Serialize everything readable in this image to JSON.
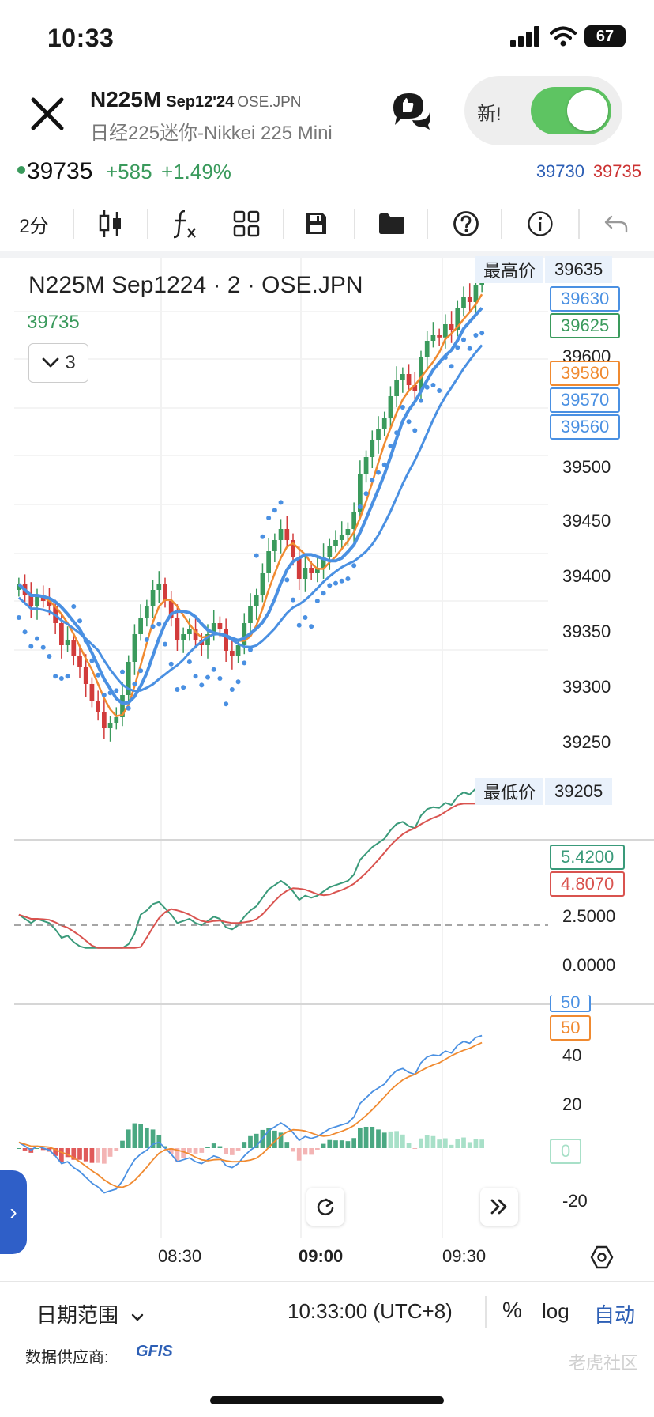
{
  "status_bar": {
    "time": "10:33",
    "battery": "67"
  },
  "header": {
    "symbol": "N225M",
    "contract": "Sep12'24",
    "exchange": "OSE.JPN",
    "subtitle": "日经225迷你-Nikkei 225 Mini",
    "new_label": "新!",
    "toggle_on": true
  },
  "quote": {
    "price": "39735",
    "change": "+585",
    "change_pct": "+1.49%",
    "bid": "39730",
    "ask": "39735"
  },
  "toolbar": {
    "interval": "2分",
    "icons": [
      "candlestick-icon",
      "function-icon",
      "grid-icon",
      "save-icon",
      "folder-icon",
      "help-icon",
      "info-icon",
      "undo-icon"
    ]
  },
  "chart": {
    "title": "N225M Sep1224 · 2 · OSE.JPN",
    "last": "39735",
    "collapse_count": "3",
    "high_label": "最高价",
    "high_value": "39635",
    "low_label": "最低价",
    "low_value": "39205",
    "badges": [
      {
        "value": "39630",
        "color": "#4a90e2"
      },
      {
        "value": "39625",
        "color": "#3a9a5c"
      },
      {
        "value": "39580",
        "color": "#f08a30"
      },
      {
        "value": "39570",
        "color": "#4a90e2"
      },
      {
        "value": "39560",
        "color": "#4a90e2"
      }
    ],
    "osc_badges": [
      {
        "value": "5.4200",
        "color": "#3a9a7a"
      },
      {
        "value": "4.8070",
        "color": "#d9534f"
      }
    ],
    "macd_badges": [
      {
        "value": "50",
        "color": "#4a90e2"
      },
      {
        "value": "50",
        "color": "#f08a30"
      },
      {
        "value": "0",
        "color": "#a8e0c8"
      }
    ],
    "time_labels": [
      "08:30",
      "09:00",
      "09:30"
    ]
  },
  "chart_data": {
    "type": "line",
    "price_axis_ticks": [
      "39600",
      "39500",
      "39450",
      "39400",
      "39350",
      "39300",
      "39250"
    ],
    "osc_axis_ticks": [
      "2.5000",
      "0.0000"
    ],
    "macd_axis_ticks": [
      "40",
      "20",
      "-20"
    ],
    "x_ticks": [
      "08:30",
      "09:00",
      "09:30"
    ]
  },
  "bottom": {
    "date_range": "日期范围",
    "clock": "10:33:00 (UTC+8)",
    "pct": "%",
    "log": "log",
    "auto": "自动",
    "provider_label": "数据供应商:",
    "provider": "GFIS",
    "watermark": "老虎社区"
  }
}
